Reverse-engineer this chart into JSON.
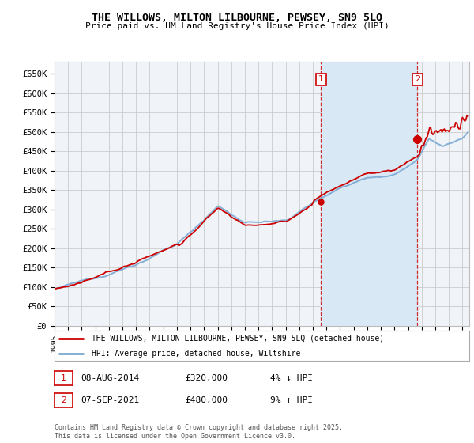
{
  "title": "THE WILLOWS, MILTON LILBOURNE, PEWSEY, SN9 5LQ",
  "subtitle": "Price paid vs. HM Land Registry's House Price Index (HPI)",
  "ylabel_ticks": [
    "£0",
    "£50K",
    "£100K",
    "£150K",
    "£200K",
    "£250K",
    "£300K",
    "£350K",
    "£400K",
    "£450K",
    "£500K",
    "£550K",
    "£600K",
    "£650K"
  ],
  "ytick_values": [
    0,
    50000,
    100000,
    150000,
    200000,
    250000,
    300000,
    350000,
    400000,
    450000,
    500000,
    550000,
    600000,
    650000
  ],
  "ylim": [
    0,
    680000
  ],
  "xlim_start": 1995.0,
  "xlim_end": 2025.5,
  "sale1_date": 2014.6,
  "sale1_price": 320000,
  "sale1_label": "1",
  "sale2_date": 2021.68,
  "sale2_price": 480000,
  "sale2_label": "2",
  "hpi_color": "#7aa8d2",
  "property_color": "#cc0000",
  "sale_marker_color": "#cc0000",
  "grid_color": "#cccccc",
  "background_color": "#ffffff",
  "plot_bg_color": "#f0f4f8",
  "sale_region_color": "#d8e8f5",
  "legend_line1": "THE WILLOWS, MILTON LILBOURNE, PEWSEY, SN9 5LQ (detached house)",
  "legend_line2": "HPI: Average price, detached house, Wiltshire",
  "annotation1_date": "08-AUG-2014",
  "annotation1_price": "£320,000",
  "annotation1_pct": "4% ↓ HPI",
  "annotation2_date": "07-SEP-2021",
  "annotation2_price": "£480,000",
  "annotation2_pct": "9% ↑ HPI",
  "footer": "Contains HM Land Registry data © Crown copyright and database right 2025.\nThis data is licensed under the Open Government Licence v3.0."
}
